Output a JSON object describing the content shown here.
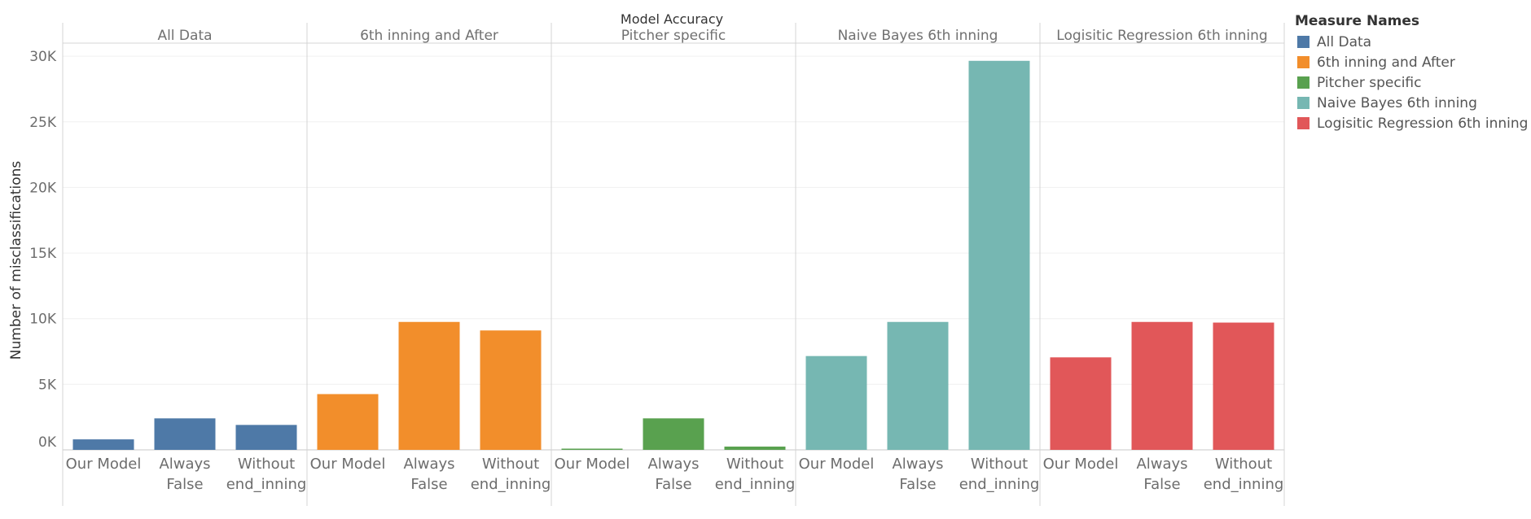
{
  "chart_data": {
    "type": "bar",
    "title": "Model Accuracy",
    "ylabel": "Number of misclassifications",
    "xlabel": "",
    "ylim": [
      0,
      31000
    ],
    "y_ticks": [
      0,
      5000,
      10000,
      15000,
      20000,
      25000,
      30000
    ],
    "y_tick_labels": [
      "0K",
      "5K",
      "10K",
      "15K",
      "20K",
      "25K",
      "30K"
    ],
    "grid": true,
    "legend": {
      "title": "Measure Names",
      "placement": "right"
    },
    "categories": [
      [
        "Our Model"
      ],
      [
        "Always",
        "False"
      ],
      [
        "Without",
        "end_inning"
      ]
    ],
    "series": [
      {
        "name": "All Data",
        "color": "#4e79a7",
        "values": [
          800,
          2400,
          1900
        ]
      },
      {
        "name": "6th inning and After",
        "color": "#f28e2b",
        "values": [
          4250,
          9750,
          9100
        ]
      },
      {
        "name": "Pitcher specific",
        "color": "#59a14f",
        "values": [
          80,
          2400,
          250
        ]
      },
      {
        "name": "Naive Bayes 6th inning",
        "color": "#76b7b2",
        "values": [
          7150,
          9750,
          29650
        ]
      },
      {
        "name": "Logisitic Regression 6th inning",
        "color": "#e15759",
        "values": [
          7050,
          9750,
          9700
        ]
      }
    ]
  }
}
